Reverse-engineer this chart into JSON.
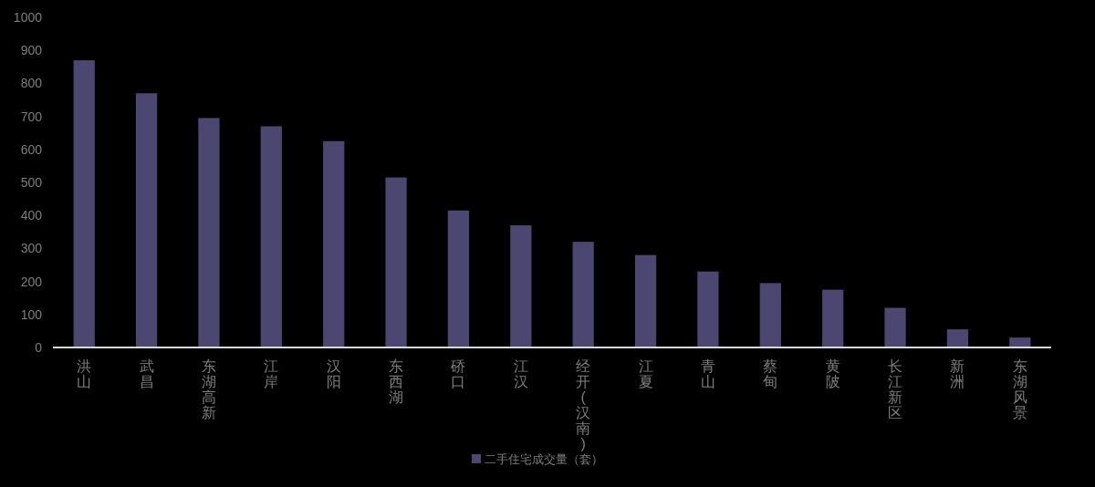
{
  "chart_data": {
    "type": "bar",
    "categories": [
      "洪山",
      "武昌",
      "东湖高新",
      "江岸",
      "汉阳",
      "东西湖",
      "硚口",
      "江汉",
      "经开(汉南)",
      "江夏",
      "青山",
      "蔡甸",
      "黄陂",
      "长江新区",
      "新洲",
      "东湖风景"
    ],
    "series": [
      {
        "name": "二手住宅成交量（套）",
        "color": "#4b4770",
        "values": [
          870,
          770,
          695,
          670,
          625,
          515,
          415,
          370,
          320,
          280,
          230,
          195,
          175,
          120,
          55,
          30
        ]
      }
    ],
    "ylim": [
      0,
      1000
    ],
    "yticks": [
      0,
      100,
      200,
      300,
      400,
      500,
      600,
      700,
      800,
      900,
      1000
    ],
    "grid": false,
    "legend": "bottom"
  }
}
